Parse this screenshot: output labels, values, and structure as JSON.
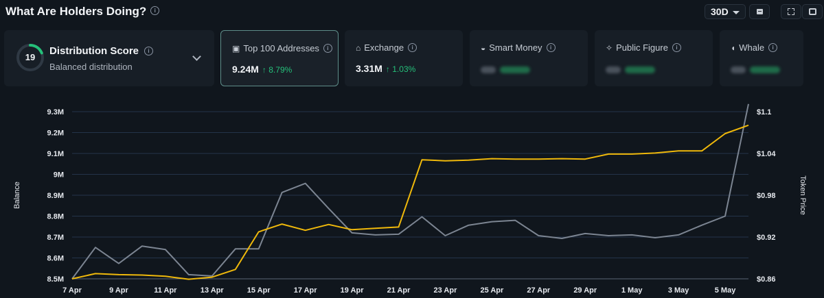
{
  "header": {
    "title": "What Are Holders Doing?",
    "period": "30D"
  },
  "distribution": {
    "score": "19",
    "score_fraction": 0.19,
    "title": "Distribution Score",
    "subtitle": "Balanced distribution"
  },
  "cards": [
    {
      "label": "Top 100 Addresses",
      "value": "9.24M",
      "change": "↑ 8.79%",
      "active": true
    },
    {
      "label": "Exchange",
      "value": "3.31M",
      "change": "↑ 1.03%",
      "active": false
    },
    {
      "label": "Smart Money",
      "value": "",
      "change": "",
      "active": false
    },
    {
      "label": "Public Figure",
      "value": "",
      "change": "",
      "active": false
    },
    {
      "label": "Whale",
      "value": "",
      "change": "",
      "active": false
    }
  ],
  "colors": {
    "balance_line": "#f0b90b",
    "price_line": "#7c8592",
    "accent_green": "#25c07a",
    "grid": "#24344a"
  },
  "chart_data": {
    "type": "line",
    "xlabel": "",
    "ylabel": "Balance",
    "y2label": "Token Price",
    "ylim": [
      8.5,
      9.3
    ],
    "y2lim": [
      0.86,
      1.1
    ],
    "x_ticks": [
      "7 Apr",
      "9 Apr",
      "11 Apr",
      "13 Apr",
      "15 Apr",
      "17 Apr",
      "19 Apr",
      "21 Apr",
      "23 Apr",
      "25 Apr",
      "27 Apr",
      "29 Apr",
      "1 May",
      "3 May",
      "5 May"
    ],
    "y_ticks": [
      "8.5M",
      "8.6M",
      "8.7M",
      "8.8M",
      "8.9M",
      "9M",
      "9.1M",
      "9.2M",
      "9.3M"
    ],
    "y2_ticks": [
      "$0.86",
      "$0.92",
      "$0.98",
      "$1.04",
      "$1.1"
    ],
    "x": [
      "7 Apr",
      "8 Apr",
      "9 Apr",
      "10 Apr",
      "11 Apr",
      "12 Apr",
      "13 Apr",
      "14 Apr",
      "15 Apr",
      "16 Apr",
      "17 Apr",
      "18 Apr",
      "19 Apr",
      "20 Apr",
      "21 Apr",
      "22 Apr",
      "23 Apr",
      "24 Apr",
      "25 Apr",
      "26 Apr",
      "27 Apr",
      "28 Apr",
      "29 Apr",
      "30 Apr",
      "1 May",
      "2 May",
      "3 May",
      "4 May",
      "5 May",
      "6 May"
    ],
    "series": [
      {
        "axis": "left",
        "color": "#f0b90b",
        "values": [
          8.5,
          8.525,
          8.52,
          8.518,
          8.512,
          8.498,
          8.508,
          8.545,
          8.725,
          8.762,
          8.732,
          8.76,
          8.735,
          8.742,
          8.748,
          9.07,
          9.065,
          9.068,
          9.075,
          9.073,
          9.073,
          9.075,
          9.073,
          9.097,
          9.097,
          9.102,
          9.112,
          9.112,
          9.195,
          9.235
        ]
      },
      {
        "axis": "right",
        "color": "#7c8592",
        "values": [
          0.86,
          0.905,
          0.882,
          0.907,
          0.902,
          0.866,
          0.864,
          0.903,
          0.903,
          0.984,
          0.997,
          0.961,
          0.926,
          0.923,
          0.924,
          0.949,
          0.922,
          0.937,
          0.942,
          0.944,
          0.922,
          0.918,
          0.925,
          0.922,
          0.923,
          0.919,
          0.923,
          0.937,
          0.95,
          1.111
        ]
      }
    ]
  }
}
